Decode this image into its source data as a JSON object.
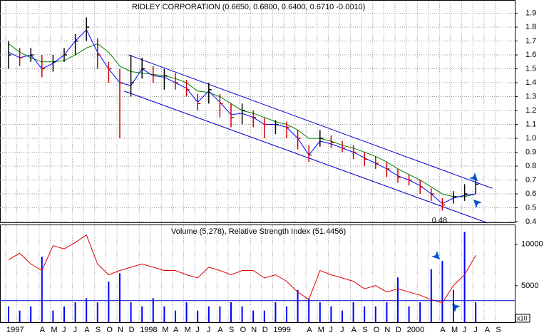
{
  "chart_data": [
    {
      "type": "ohlc",
      "title": "RIDLEY CORPORATION (0.6650, 0.6800, 0.6400, 0.6710 -0.0010)",
      "ylim": [
        0.39,
        1.99
      ],
      "yticks": [
        0.4,
        0.5,
        0.6,
        0.7,
        0.8,
        0.9,
        {
          "value": 1,
          "label": "1.0"
        },
        1.1,
        1.2,
        1.3,
        1.4,
        1.5,
        1.6,
        1.7,
        1.8,
        1.9
      ],
      "grid": true,
      "up_color": "#000000",
      "down_color": "#cc0000",
      "high": [
        1.7,
        1.65,
        1.65,
        1.6,
        1.6,
        1.65,
        1.75,
        1.87,
        1.72,
        1.55,
        1.5,
        1.6,
        1.58,
        1.52,
        1.5,
        1.47,
        1.42,
        1.32,
        1.4,
        1.32,
        1.25,
        1.25,
        1.2,
        1.15,
        1.13,
        1.12,
        1.06,
        0.95,
        1.06,
        1.02,
        0.98,
        0.95,
        0.9,
        0.87,
        0.83,
        0.78,
        0.74,
        0.7,
        0.64,
        0.57,
        0.62,
        0.67,
        0.7,
        null,
        null
      ],
      "low": [
        1.5,
        1.52,
        1.55,
        1.44,
        1.48,
        1.55,
        1.6,
        1.7,
        1.5,
        1.4,
        1.0,
        1.3,
        1.43,
        1.4,
        1.35,
        1.35,
        1.3,
        1.2,
        1.25,
        1.15,
        1.08,
        1.1,
        1.08,
        1.0,
        1.03,
        1.0,
        0.92,
        0.83,
        0.94,
        0.93,
        0.9,
        0.85,
        0.8,
        0.78,
        0.72,
        0.68,
        0.66,
        0.6,
        0.55,
        0.48,
        0.53,
        0.55,
        0.6,
        null,
        null
      ],
      "close": [
        1.6,
        1.58,
        1.6,
        1.5,
        1.55,
        1.6,
        1.7,
        1.8,
        1.6,
        1.5,
        1.4,
        1.4,
        1.5,
        1.45,
        1.45,
        1.4,
        1.35,
        1.25,
        1.35,
        1.25,
        1.15,
        1.2,
        1.15,
        1.1,
        1.1,
        1.08,
        1.0,
        0.88,
        1.0,
        0.97,
        0.93,
        0.9,
        0.85,
        0.82,
        0.78,
        0.72,
        0.7,
        0.65,
        0.6,
        0.52,
        0.58,
        0.6,
        0.67,
        null,
        null
      ],
      "lines": [
        {
          "color": "#008000",
          "values": [
            1.68,
            1.62,
            1.58,
            1.55,
            1.55,
            1.56,
            1.6,
            1.65,
            1.68,
            1.62,
            1.52,
            1.48,
            1.47,
            1.46,
            1.45,
            1.43,
            1.4,
            1.34,
            1.33,
            1.3,
            1.25,
            1.2,
            1.18,
            1.15,
            1.12,
            1.1,
            1.06,
            1.0,
            1.0,
            0.98,
            0.95,
            0.93,
            0.9,
            0.87,
            0.83,
            0.78,
            0.74,
            0.7,
            0.65,
            0.6,
            0.58,
            0.58,
            0.6,
            null,
            null
          ]
        },
        {
          "color": "#0000ff",
          "values": [
            1.62,
            1.58,
            1.6,
            1.5,
            1.54,
            1.6,
            1.7,
            1.78,
            1.62,
            1.5,
            1.4,
            1.38,
            1.5,
            1.45,
            1.44,
            1.4,
            1.36,
            1.26,
            1.34,
            1.26,
            1.17,
            1.18,
            1.15,
            1.1,
            1.1,
            1.08,
            1.0,
            0.88,
            0.98,
            0.96,
            0.93,
            0.9,
            0.86,
            0.82,
            0.78,
            0.73,
            0.7,
            0.66,
            0.6,
            0.53,
            0.57,
            0.59,
            0.6,
            null,
            null
          ]
        }
      ],
      "channels": [
        {
          "color": "#0000cc",
          "x": [
            10.8,
            43.5
          ],
          "y": [
            1.6,
            0.64
          ]
        },
        {
          "color": "#0000cc",
          "x": [
            10.4,
            43.1
          ],
          "y": [
            1.34,
            0.39
          ]
        }
      ],
      "low_label": "0.48"
    },
    {
      "type": "bar",
      "title": "Volume (5,278), Relative Strength Index (51.4456)",
      "y_unit_label": "x10",
      "categories": [
        "1997",
        null,
        null,
        "A",
        "M",
        "J",
        "J",
        "A",
        "S",
        "O",
        "N",
        "D",
        "1998",
        null,
        "M",
        "A",
        "M",
        "J",
        "J",
        "A",
        "S",
        "O",
        "N",
        "D",
        "1999",
        null,
        null,
        "A",
        "M",
        "J",
        "J",
        "A",
        "S",
        "O",
        "N",
        "D",
        "2000",
        null,
        null,
        "A",
        "M",
        "J",
        "J",
        "A",
        "S"
      ],
      "ylim": [
        600,
        12300
      ],
      "yticks": [
        5000,
        10000
      ],
      "y2lim": [
        10,
        100
      ],
      "y2_reference": 30,
      "series": [
        {
          "color": "#0000ff",
          "values": [
            2500,
            2000,
            2500,
            8500,
            2000,
            2500,
            3000,
            3500,
            3000,
            5500,
            6500,
            3000,
            2500,
            3500,
            2500,
            2000,
            3000,
            2000,
            2500,
            2500,
            3000,
            2500,
            2000,
            2000,
            3000,
            2500,
            4500,
            3500,
            3000,
            2500,
            2000,
            3000,
            2500,
            2500,
            3000,
            6000,
            2500,
            3000,
            7000,
            8000,
            4500,
            11500,
            3000,
            null,
            null
          ]
        },
        {
          "color": "#dd0000",
          "axis": "y2",
          "values": [
            68,
            74,
            64,
            58,
            81,
            78,
            84,
            91,
            64,
            54,
            58,
            61,
            64,
            61,
            58,
            58,
            54,
            51,
            61,
            58,
            54,
            58,
            58,
            51,
            54,
            48,
            38,
            31,
            58,
            54,
            51,
            48,
            41,
            44,
            38,
            41,
            38,
            35,
            31,
            28,
            44,
            54,
            72,
            null,
            null
          ]
        }
      ]
    }
  ]
}
